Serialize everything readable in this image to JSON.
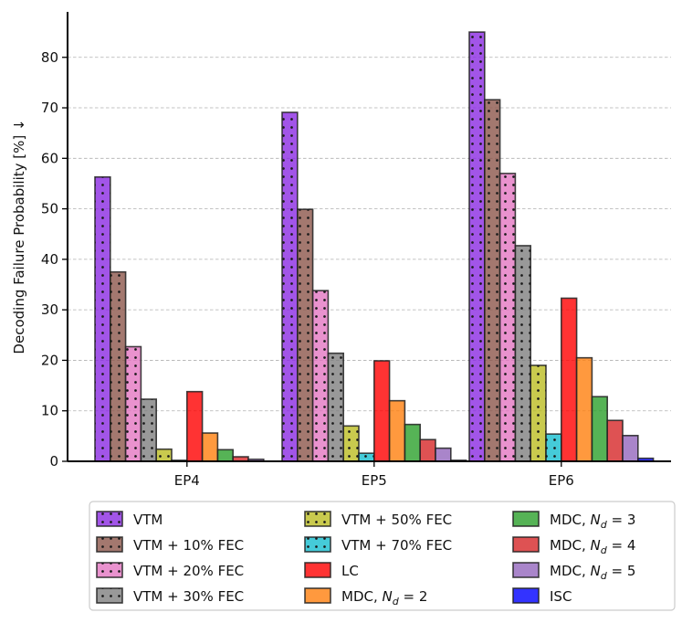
{
  "chart_data": {
    "type": "bar",
    "title": "",
    "xlabel": "",
    "ylabel": "Decoding Failure Probability [%] ↓",
    "ylim": [
      0,
      89
    ],
    "yticks": [
      0,
      10,
      20,
      30,
      40,
      50,
      60,
      70,
      80
    ],
    "grid": "y, dashed",
    "legend_position": "bottom, 3 columns",
    "categories": [
      "EP4",
      "EP5",
      "EP6"
    ],
    "series": [
      {
        "name": "VTM",
        "values": [
          56.3,
          69.1,
          85.0
        ],
        "color": "#8b2be2",
        "hatch": "dots"
      },
      {
        "name": "VTM + 10% FEC",
        "values": [
          37.5,
          49.9,
          71.6
        ],
        "color": "#8c564b",
        "hatch": "dots"
      },
      {
        "name": "VTM + 20% FEC",
        "values": [
          22.7,
          33.8,
          57.0
        ],
        "color": "#e377c2",
        "hatch": "dots"
      },
      {
        "name": "VTM + 30% FEC",
        "values": [
          12.3,
          21.4,
          42.7
        ],
        "color": "#7f7f7f",
        "hatch": "dots"
      },
      {
        "name": "VTM + 50% FEC",
        "values": [
          2.4,
          7.0,
          19.0
        ],
        "color": "#bcbd22",
        "hatch": "dots"
      },
      {
        "name": "VTM + 70% FEC",
        "values": [
          0.2,
          1.6,
          5.4
        ],
        "color": "#17becf",
        "hatch": "dots"
      },
      {
        "name": "LC",
        "values": [
          13.8,
          19.9,
          32.3
        ],
        "color": "#ff0000",
        "hatch": "none"
      },
      {
        "name": "MDC, N_d = 2",
        "values": [
          5.6,
          12.0,
          20.5
        ],
        "color": "#ff7f0e",
        "hatch": "none"
      },
      {
        "name": "MDC, N_d = 3",
        "values": [
          2.3,
          7.3,
          12.8
        ],
        "color": "#2ca02c",
        "hatch": "none"
      },
      {
        "name": "MDC, N_d = 4",
        "values": [
          0.9,
          4.3,
          8.1
        ],
        "color": "#d62728",
        "hatch": "none"
      },
      {
        "name": "MDC, N_d = 5",
        "values": [
          0.4,
          2.6,
          5.1
        ],
        "color": "#9467bd",
        "hatch": "none"
      },
      {
        "name": "ISC",
        "values": [
          0.0,
          0.2,
          0.6
        ],
        "color": "#0000ff",
        "hatch": "none"
      }
    ],
    "legend_labels": [
      {
        "main": "VTM",
        "sub": ""
      },
      {
        "main": "VTM + 10% FEC",
        "sub": ""
      },
      {
        "main": "VTM + 20% FEC",
        "sub": ""
      },
      {
        "main": "VTM + 30% FEC",
        "sub": ""
      },
      {
        "main": "VTM + 50% FEC",
        "sub": ""
      },
      {
        "main": "VTM + 70% FEC",
        "sub": ""
      },
      {
        "main": "LC",
        "sub": ""
      },
      {
        "main": "MDC, N",
        "sub": "d",
        "tail": " = 2"
      },
      {
        "main": "MDC, N",
        "sub": "d",
        "tail": " = 3"
      },
      {
        "main": "MDC, N",
        "sub": "d",
        "tail": " = 4"
      },
      {
        "main": "MDC, N",
        "sub": "d",
        "tail": " = 5"
      },
      {
        "main": "ISC",
        "sub": ""
      }
    ]
  }
}
